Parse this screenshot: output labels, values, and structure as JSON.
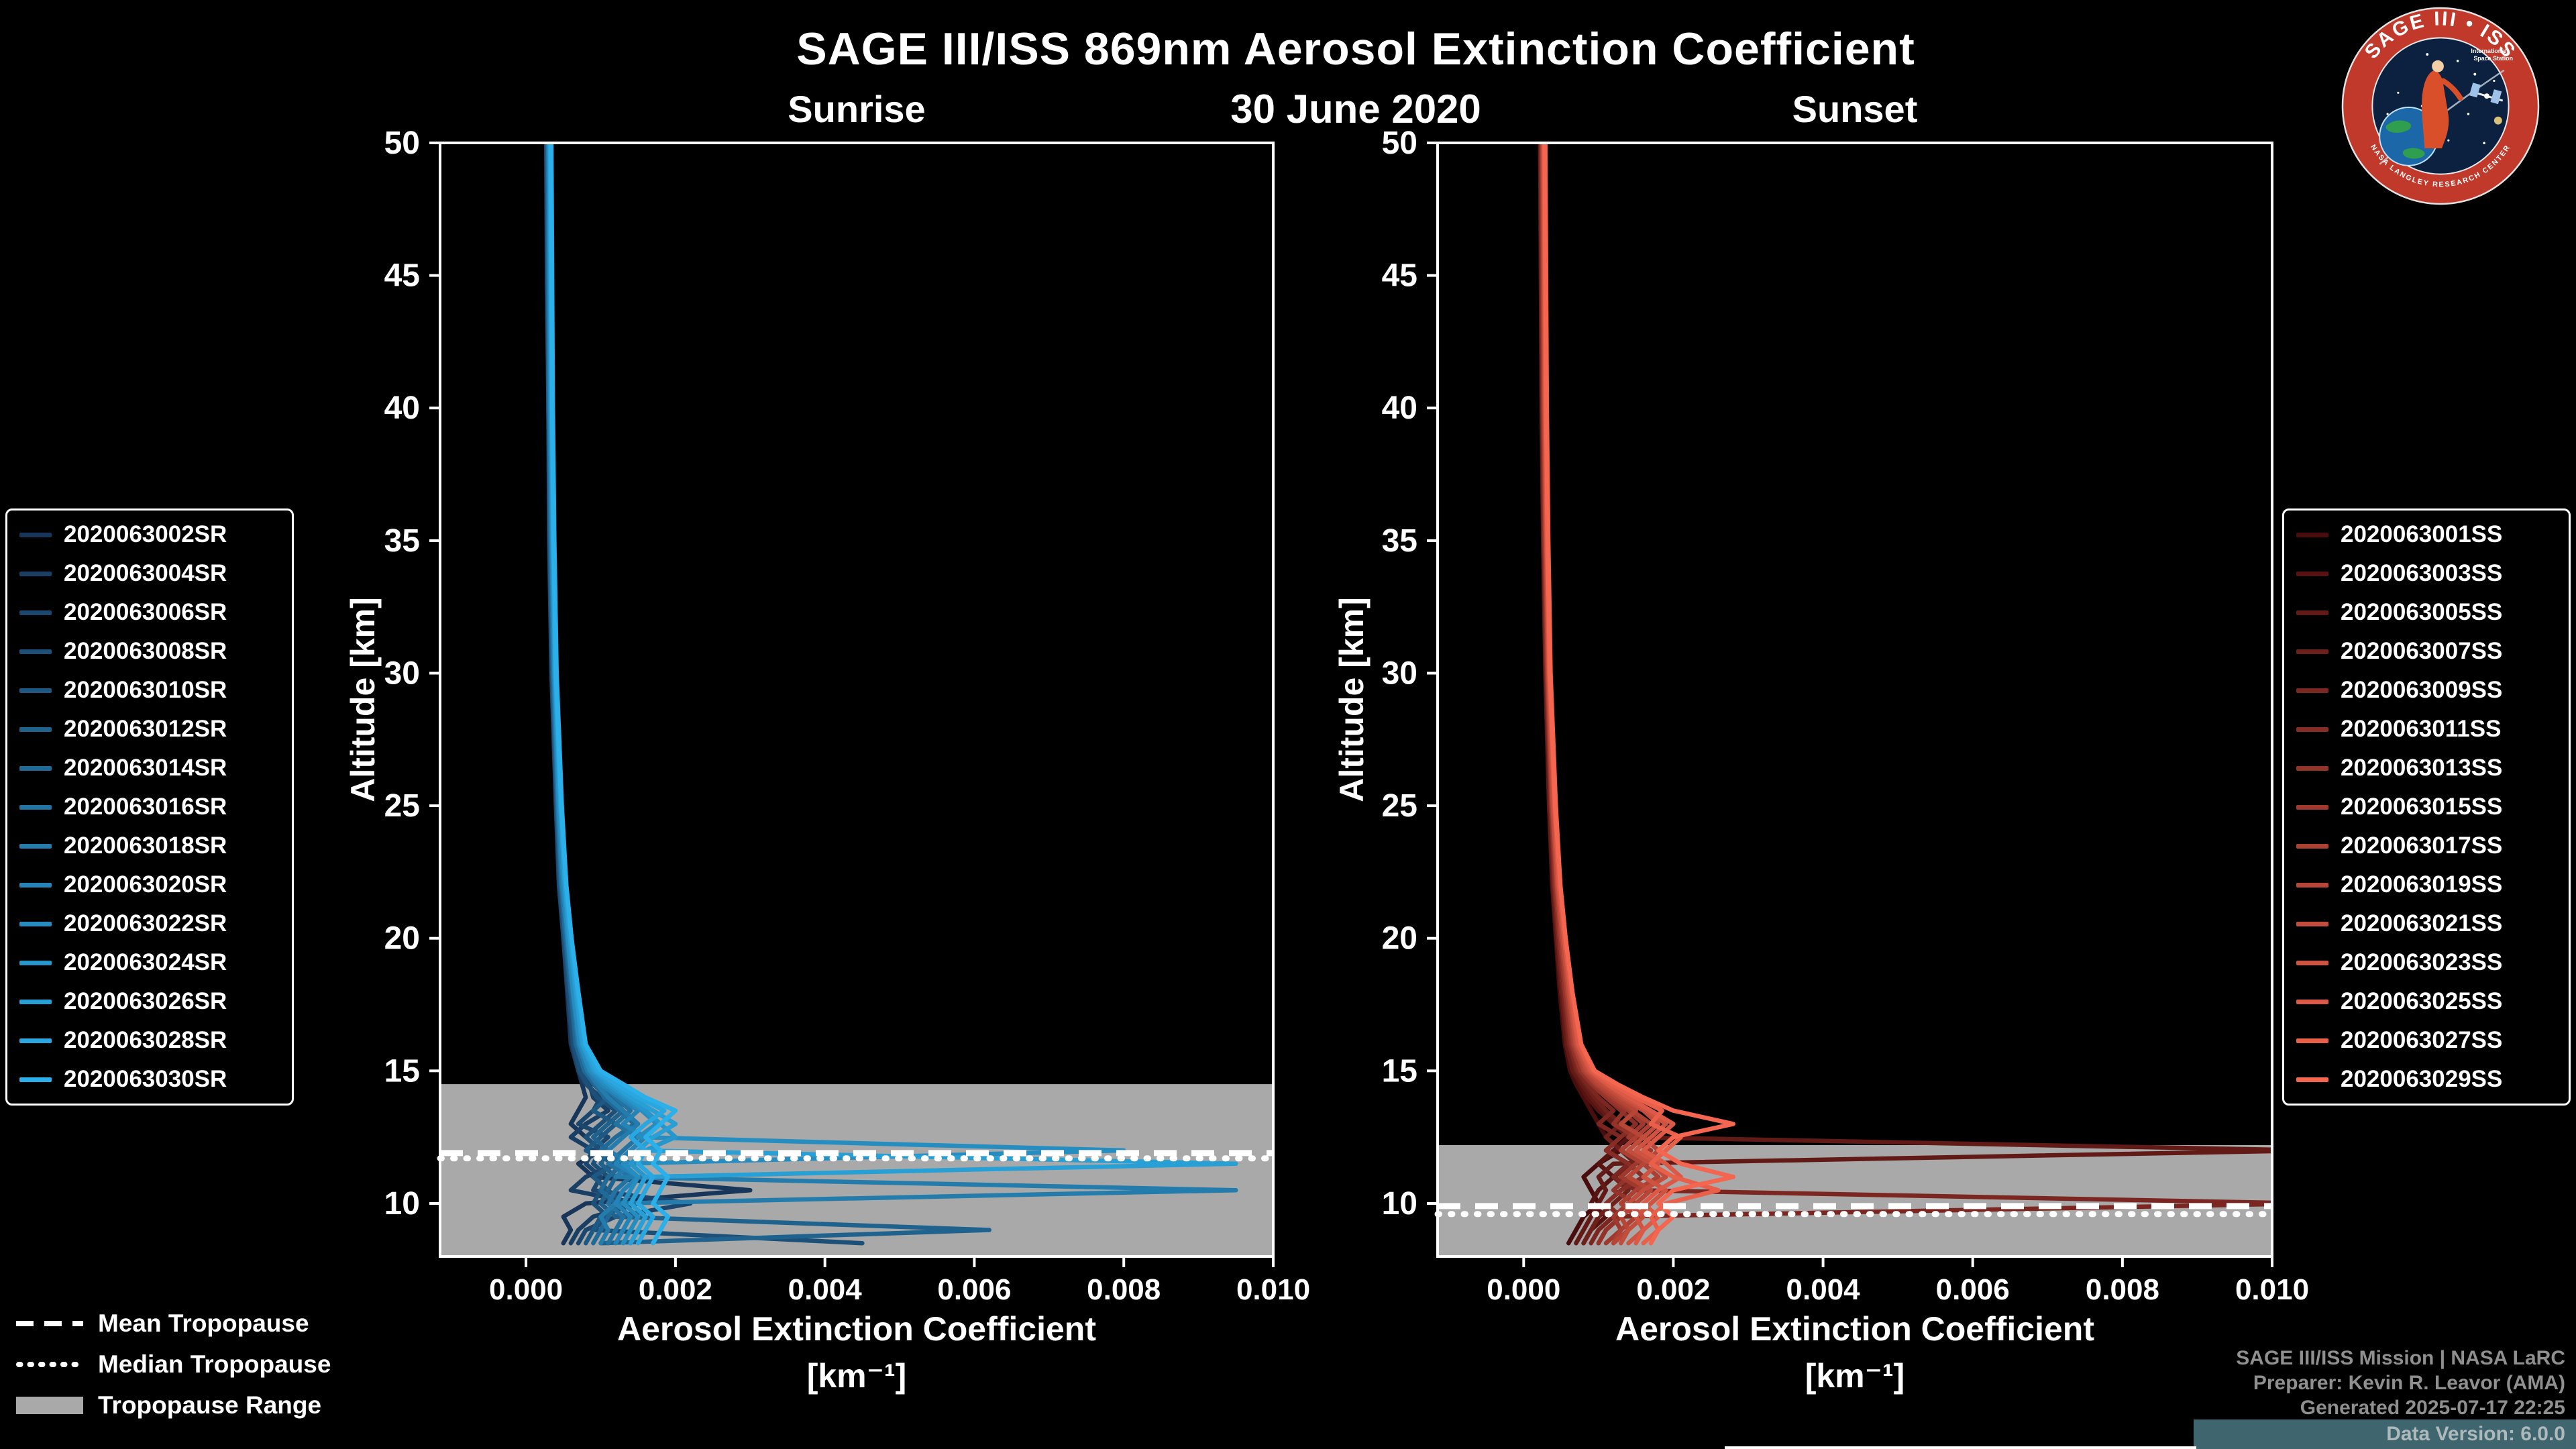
{
  "title": "SAGE III/ISS 869nm Aerosol Extinction Coefficient",
  "date": "30 June 2020",
  "logo": {
    "arc_text": "SAGE III • ISS",
    "subtext_line1": "International",
    "subtext_line2": "Space Station",
    "bottom_arc_text": "NASA LANGLEY RESEARCH CENTER"
  },
  "tropopause_legend": {
    "mean": "Mean Tropopause",
    "median": "Median Tropopause",
    "range": "Tropopause Range"
  },
  "credits": {
    "lines": [
      "SAGE III/ISS Mission | NASA LaRC",
      "Preparer: Kevin R. Leavor (AMA)",
      "Generated 2025-07-17 22:25",
      "Data Version: 6.0.0"
    ]
  },
  "chart_data": [
    {
      "type": "line",
      "title": "Sunrise",
      "ylabel": "Altitude [km]",
      "xlabel": "Aerosol Extinction Coefficient",
      "xlabel_units": "[km⁻¹]",
      "xlim": [
        -0.00115,
        0.01
      ],
      "ylim": [
        8,
        50
      ],
      "x_scale": 0.0001,
      "xticks": [
        0,
        0.002,
        0.004,
        0.006,
        0.008,
        0.01
      ],
      "xtick_labels": [
        "0.000",
        "0.002",
        "0.004",
        "0.006",
        "0.008",
        "0.010"
      ],
      "yticks": [
        10,
        15,
        20,
        25,
        30,
        35,
        40,
        45,
        50
      ],
      "grid": false,
      "legend_position": "left-outside",
      "tropopause": {
        "mean": 11.9,
        "median": 11.7,
        "range": [
          8,
          14.5
        ],
        "band_color": "#a9a9a9"
      },
      "altitudes": [
        50,
        45,
        40,
        35,
        30,
        25,
        22,
        20,
        18,
        16,
        15,
        14.5,
        14,
        13.5,
        13,
        12.5,
        12,
        11.5,
        11,
        10.5,
        10,
        9.5,
        9,
        8.5
      ],
      "series": [
        {
          "name": "2020063002SR",
          "color": "#18365a",
          "values": [
            2.8,
            2.8,
            3.0,
            3.2,
            3.5,
            4.0,
            4.5,
            5.0,
            5.5,
            6.0,
            7.0,
            7.5,
            8.0,
            7.0,
            6.0,
            8.0,
            10,
            7,
            9,
            30,
            8,
            5,
            6,
            5
          ]
        },
        {
          "name": "2020063004SR",
          "color": "#193f64",
          "values": [
            3.0,
            3.0,
            3.1,
            3.3,
            3.6,
            4.2,
            4.6,
            5.2,
            5.8,
            6.5,
            7.5,
            8.5,
            9,
            11,
            8,
            6,
            9,
            12,
            8,
            6,
            15,
            9,
            7,
            6
          ]
        },
        {
          "name": "2020063006SR",
          "color": "#1b476f",
          "values": [
            2.7,
            2.8,
            3.0,
            3.1,
            3.4,
            4.0,
            4.4,
            5.0,
            5.6,
            6.2,
            7.0,
            8.0,
            10,
            9,
            7,
            11,
            9,
            8,
            10,
            9,
            22,
            12,
            8,
            7
          ]
        },
        {
          "name": "2020063008SR",
          "color": "#1c5079",
          "values": [
            2.9,
            3.0,
            3.1,
            3.3,
            3.6,
            4.1,
            4.5,
            5.1,
            5.7,
            6.4,
            7.2,
            8.2,
            9.5,
            12,
            10,
            8,
            10,
            9,
            11,
            10,
            9,
            11,
            9,
            45
          ]
        },
        {
          "name": "2020063010SR",
          "color": "#1d5983",
          "values": [
            2.8,
            2.9,
            3.0,
            3.2,
            3.5,
            4.1,
            4.6,
            5.2,
            5.9,
            6.6,
            7.8,
            9,
            11,
            9,
            12,
            10,
            8,
            12,
            9,
            11,
            13,
            10,
            9,
            8
          ]
        },
        {
          "name": "2020063012SR",
          "color": "#1f628d",
          "values": [
            3.0,
            3.1,
            3.2,
            3.4,
            3.7,
            4.3,
            4.8,
            5.4,
            6.0,
            6.8,
            8.0,
            9.5,
            11.5,
            13,
            11,
            9,
            11,
            10,
            12,
            11,
            10,
            12,
            62,
            10
          ]
        },
        {
          "name": "2020063014SR",
          "color": "#206a98",
          "values": [
            2.9,
            3.0,
            3.1,
            3.3,
            3.6,
            4.2,
            4.7,
            5.3,
            6.0,
            6.7,
            7.8,
            9.2,
            10.5,
            12.5,
            14.5,
            12,
            10,
            13,
            11,
            10,
            12,
            11,
            10,
            9
          ]
        },
        {
          "name": "2020063016SR",
          "color": "#2273a2",
          "values": [
            3.1,
            3.2,
            3.3,
            3.5,
            3.8,
            4.4,
            4.9,
            5.5,
            6.2,
            7.0,
            8.5,
            10,
            12,
            14,
            12,
            15,
            13,
            11,
            14,
            12,
            11,
            13,
            12,
            11
          ]
        },
        {
          "name": "2020063018SR",
          "color": "#237cac",
          "values": [
            3.0,
            3.1,
            3.2,
            3.4,
            3.7,
            4.3,
            4.8,
            5.5,
            6.2,
            7.0,
            8.2,
            9.5,
            11,
            13,
            15,
            13,
            11,
            14,
            12,
            95,
            12,
            10,
            11,
            10
          ]
        },
        {
          "name": "2020063020SR",
          "color": "#2484b7",
          "values": [
            3.2,
            3.3,
            3.4,
            3.6,
            3.9,
            4.5,
            5.0,
            5.7,
            6.4,
            7.2,
            8.5,
            10,
            12.5,
            15,
            13,
            16,
            14,
            12,
            15,
            13,
            12,
            14,
            13,
            12
          ]
        },
        {
          "name": "2020063022SR",
          "color": "#268dc1",
          "values": [
            3.1,
            3.2,
            3.3,
            3.5,
            3.8,
            4.4,
            5.0,
            5.6,
            6.3,
            7.2,
            8.6,
            10.5,
            13,
            15.5,
            17.5,
            15,
            80,
            13,
            15,
            14,
            13,
            15,
            14,
            13
          ]
        },
        {
          "name": "2020063024SR",
          "color": "#2796cb",
          "values": [
            3.3,
            3.4,
            3.5,
            3.7,
            4.0,
            4.6,
            5.2,
            5.8,
            6.6,
            7.5,
            9,
            11,
            13.5,
            16,
            18,
            20,
            16,
            14,
            16,
            15,
            14,
            16,
            15,
            14
          ]
        },
        {
          "name": "2020063026SR",
          "color": "#289fd5",
          "values": [
            3.2,
            3.3,
            3.4,
            3.6,
            3.9,
            4.6,
            5.2,
            5.9,
            6.7,
            7.6,
            9.2,
            11.5,
            14,
            17,
            20,
            17,
            15,
            95,
            16,
            15,
            14,
            16,
            15,
            14
          ]
        },
        {
          "name": "2020063028SR",
          "color": "#2aa7e0",
          "values": [
            3.4,
            3.5,
            3.6,
            3.8,
            4.1,
            4.8,
            5.4,
            6.1,
            6.9,
            7.9,
            9.5,
            12,
            15,
            18.5,
            16,
            14,
            16,
            15,
            17,
            16,
            15,
            17,
            16,
            15
          ]
        },
        {
          "name": "2020063030SR",
          "color": "#2bb0ea",
          "values": [
            3.3,
            3.4,
            3.5,
            3.7,
            4.0,
            4.7,
            5.4,
            6.1,
            7.0,
            8.0,
            10,
            13,
            16,
            20,
            18,
            16,
            18,
            17,
            19,
            18,
            17,
            19,
            18,
            17
          ]
        }
      ]
    },
    {
      "type": "line",
      "title": "Sunset",
      "ylabel": "Altitude [km]",
      "xlabel": "Aerosol Extinction Coefficient",
      "xlabel_units": "[km⁻¹]",
      "xlim": [
        -0.00115,
        0.01
      ],
      "ylim": [
        8,
        50
      ],
      "x_scale": 0.0001,
      "xticks": [
        0,
        0.002,
        0.004,
        0.006,
        0.008,
        0.01
      ],
      "xtick_labels": [
        "0.000",
        "0.002",
        "0.004",
        "0.006",
        "0.008",
        "0.010"
      ],
      "yticks": [
        10,
        15,
        20,
        25,
        30,
        35,
        40,
        45,
        50
      ],
      "grid": false,
      "legend_position": "right-outside",
      "tropopause": {
        "mean": 9.9,
        "median": 9.6,
        "range": [
          8,
          12.2
        ],
        "band_color": "#a9a9a9"
      },
      "altitudes": [
        50,
        45,
        40,
        35,
        30,
        25,
        22,
        20,
        18,
        16,
        15,
        14.5,
        14,
        13.5,
        13,
        12.5,
        12,
        11.5,
        11,
        10.5,
        10,
        9.5,
        9,
        8.5
      ],
      "series": [
        {
          "name": "2020063001SS",
          "color": "#4a0d0d",
          "values": [
            2.2,
            2.3,
            2.4,
            2.6,
            2.9,
            3.4,
            3.8,
            4.3,
            4.8,
            5.5,
            6.2,
            7.0,
            8.0,
            9,
            10,
            11,
            13,
            10,
            8,
            9,
            10,
            8,
            7,
            6
          ]
        },
        {
          "name": "2020063003SS",
          "color": "#561312",
          "values": [
            2.3,
            2.4,
            2.5,
            2.7,
            3.0,
            3.5,
            3.9,
            4.4,
            5.0,
            5.7,
            6.5,
            7.5,
            8.5,
            10,
            12,
            14,
            12,
            10,
            12,
            10,
            9,
            11,
            9,
            8
          ]
        },
        {
          "name": "2020063005SS",
          "color": "#621a16",
          "values": [
            2.2,
            2.3,
            2.4,
            2.6,
            2.9,
            3.4,
            3.9,
            4.4,
            5.0,
            5.7,
            6.6,
            7.8,
            9,
            10.5,
            12,
            14,
            105,
            12,
            10,
            11,
            10,
            9,
            8,
            7
          ]
        },
        {
          "name": "2020063007SS",
          "color": "#6e201b",
          "values": [
            2.4,
            2.5,
            2.6,
            2.8,
            3.1,
            3.6,
            4.0,
            4.6,
            5.2,
            6.0,
            7.0,
            8.2,
            9.5,
            11,
            13,
            11,
            13,
            15,
            12,
            14,
            12,
            10,
            9,
            8
          ]
        },
        {
          "name": "2020063009SS",
          "color": "#7b2620",
          "values": [
            2.3,
            2.4,
            2.5,
            2.7,
            3.0,
            3.6,
            4.1,
            4.6,
            5.3,
            6.1,
            7.2,
            8.5,
            10,
            12,
            10,
            13,
            11,
            14,
            12,
            15,
            105,
            12,
            10,
            9
          ]
        },
        {
          "name": "2020063011SS",
          "color": "#872d25",
          "values": [
            2.5,
            2.6,
            2.7,
            2.9,
            3.2,
            3.7,
            4.2,
            4.8,
            5.5,
            6.3,
            7.5,
            9,
            11,
            13,
            15,
            13,
            11,
            14,
            16,
            13,
            11,
            13,
            11,
            10
          ]
        },
        {
          "name": "2020063013SS",
          "color": "#933329",
          "values": [
            2.4,
            2.5,
            2.6,
            2.8,
            3.1,
            3.7,
            4.2,
            4.8,
            5.5,
            6.4,
            7.6,
            9.2,
            11,
            13.5,
            12,
            15,
            13,
            16,
            14,
            12,
            15,
            13,
            11,
            10
          ]
        },
        {
          "name": "2020063015SS",
          "color": "#9f392e",
          "values": [
            2.6,
            2.7,
            2.8,
            3.0,
            3.3,
            3.9,
            4.4,
            5.0,
            5.7,
            6.6,
            8.0,
            9.5,
            11.5,
            14,
            16,
            14,
            17,
            15,
            13,
            16,
            14,
            12,
            13,
            11
          ]
        },
        {
          "name": "2020063017SS",
          "color": "#ab4033",
          "values": [
            2.5,
            2.6,
            2.7,
            2.9,
            3.2,
            3.8,
            4.4,
            5.0,
            5.8,
            6.7,
            8.0,
            9.7,
            12,
            14.5,
            17,
            15,
            13,
            16,
            18,
            15,
            13,
            15,
            13,
            12
          ]
        },
        {
          "name": "2020063019SS",
          "color": "#b74637",
          "values": [
            2.7,
            2.8,
            2.9,
            3.1,
            3.4,
            4.0,
            4.5,
            5.2,
            6.0,
            6.9,
            8.3,
            10,
            12.5,
            15,
            13,
            16,
            18,
            16,
            14,
            17,
            15,
            13,
            14,
            12
          ]
        },
        {
          "name": "2020063021SS",
          "color": "#c34d3c",
          "values": [
            2.6,
            2.7,
            2.8,
            3.0,
            3.3,
            3.9,
            4.5,
            5.2,
            6.0,
            7.0,
            8.5,
            10.5,
            13,
            16,
            18,
            16,
            14,
            17,
            19,
            16,
            14,
            16,
            14,
            13
          ]
        },
        {
          "name": "2020063023SS",
          "color": "#cf5341",
          "values": [
            2.8,
            2.9,
            3.0,
            3.2,
            3.5,
            4.1,
            4.7,
            5.4,
            6.2,
            7.2,
            8.8,
            11,
            13.5,
            16.5,
            19,
            17,
            15,
            18,
            16,
            19,
            17,
            15,
            16,
            14
          ]
        },
        {
          "name": "2020063025SS",
          "color": "#db5946",
          "values": [
            2.7,
            2.8,
            2.9,
            3.1,
            3.4,
            4.1,
            4.7,
            5.4,
            6.3,
            7.3,
            9.0,
            11.2,
            14,
            17,
            20,
            18,
            16,
            19,
            21,
            18,
            16,
            18,
            16,
            15
          ]
        },
        {
          "name": "2020063027SS",
          "color": "#e8604a",
          "values": [
            2.9,
            3.0,
            3.1,
            3.3,
            3.6,
            4.3,
            4.9,
            5.6,
            6.5,
            7.6,
            9.3,
            11.8,
            15,
            18.5,
            17,
            21,
            19,
            17,
            20,
            26,
            19,
            17,
            18,
            16
          ]
        },
        {
          "name": "2020063029SS",
          "color": "#f4664f",
          "values": [
            2.8,
            2.9,
            3.0,
            3.2,
            3.5,
            4.2,
            4.9,
            5.6,
            6.5,
            7.7,
            9.5,
            12.5,
            16,
            20,
            28,
            20,
            18,
            21,
            28,
            20,
            18,
            20,
            18,
            17
          ]
        }
      ]
    }
  ]
}
